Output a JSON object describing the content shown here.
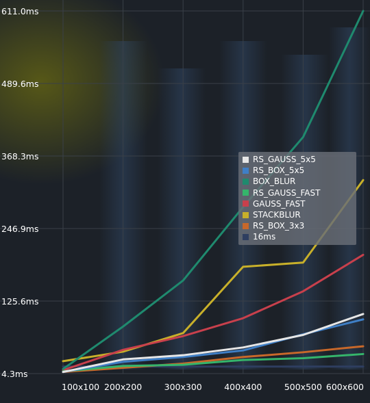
{
  "chart_data": {
    "type": "line",
    "title": "",
    "xlabel": "",
    "ylabel": "",
    "categories": [
      "100x100",
      "200x200",
      "300x300",
      "400x400",
      "500x500",
      "600x600"
    ],
    "y_ticks": [
      "4.3ms",
      "125.6ms",
      "246.9ms",
      "368.3ms",
      "489.6ms",
      "611.0ms"
    ],
    "ylim": [
      4.3,
      611.0
    ],
    "grid": true,
    "legend_position": "right",
    "series": [
      {
        "name": "RS_GAUSS_5x5",
        "color": "#e6e6e6",
        "values": [
          7,
          28,
          35,
          48,
          69,
          104
        ]
      },
      {
        "name": "RS_BOX_5x5",
        "color": "#3f7fc6",
        "values": [
          7,
          24,
          32,
          43,
          70,
          95
        ]
      },
      {
        "name": "BOX_BLUR",
        "color": "#1f8a6e",
        "values": [
          12,
          83,
          160,
          283,
          400,
          611
        ]
      },
      {
        "name": "RS_GAUSS_FAST",
        "color": "#35b56b",
        "values": [
          8,
          17,
          19,
          27,
          30,
          37
        ]
      },
      {
        "name": "GAUSS_FAST",
        "color": "#c8404c",
        "values": [
          10,
          44,
          67,
          97,
          142,
          203
        ]
      },
      {
        "name": "STACKBLUR",
        "color": "#c8b02a",
        "values": [
          25,
          41,
          72,
          183,
          190,
          328
        ]
      },
      {
        "name": "RS_BOX_3x3",
        "color": "#c8682a",
        "values": [
          7,
          14,
          21,
          32,
          40,
          50
        ]
      },
      {
        "name": "16ms",
        "color": "#2e3e60",
        "values": [
          16,
          16,
          16,
          16,
          16,
          16
        ]
      }
    ]
  }
}
